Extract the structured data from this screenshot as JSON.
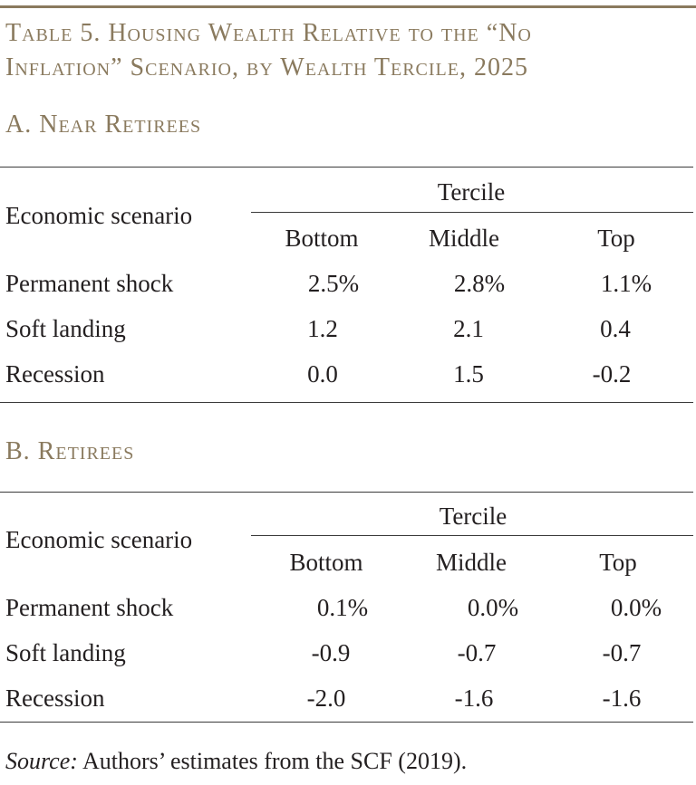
{
  "title": {
    "line1": "Table 5. Housing Wealth Relative to the “No",
    "line2": "Inflation” Scenario, by Wealth Tercile, 2025"
  },
  "panels": [
    {
      "heading": "A. Near Retirees",
      "row_header": "Economic scenario",
      "group_header": "Tercile",
      "columns": [
        "Bottom",
        "Middle",
        "Top"
      ],
      "rows": [
        {
          "label": "Permanent shock",
          "values": [
            "2.5%",
            "2.8%",
            "1.1%"
          ]
        },
        {
          "label": "Soft landing",
          "values": [
            "1.2",
            "2.1",
            "0.4"
          ]
        },
        {
          "label": "Recession",
          "values": [
            "0.0",
            "1.5",
            "-0.2"
          ]
        }
      ]
    },
    {
      "heading": "B. Retirees",
      "row_header": "Economic scenario",
      "group_header": "Tercile",
      "columns": [
        "Bottom",
        "Middle",
        "Top"
      ],
      "rows": [
        {
          "label": "Permanent shock",
          "values": [
            "0.1%",
            "0.0%",
            "0.0%"
          ]
        },
        {
          "label": "Soft landing",
          "values": [
            "-0.9",
            "-0.7",
            "-0.7"
          ]
        },
        {
          "label": "Recession",
          "values": [
            "-2.0",
            "-1.6",
            "-1.6"
          ]
        }
      ]
    }
  ],
  "source": {
    "label": "Source:",
    "text": " Authors’ estimates from the SCF (2019)."
  },
  "colors": {
    "heading": "#8a7a5e",
    "text": "#231f20",
    "rule": "#3a3a3a"
  }
}
